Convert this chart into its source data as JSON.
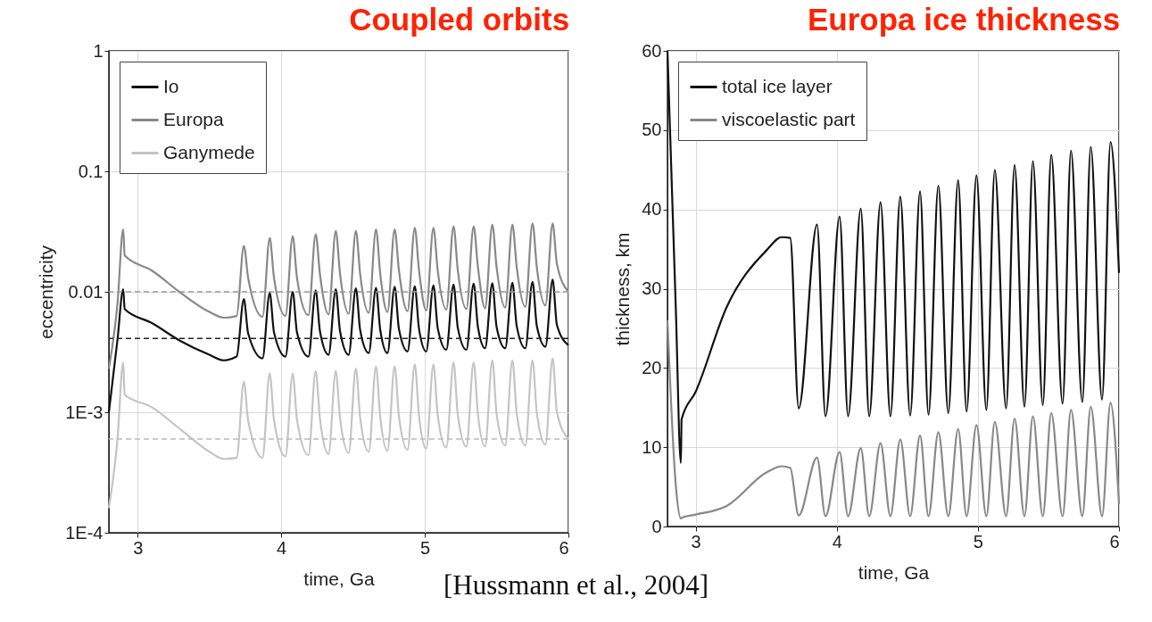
{
  "chart_data": [
    {
      "type": "line",
      "title": "Coupled orbits",
      "xlabel": "time, Ga",
      "ylabel": "eccentricity",
      "log": "y",
      "grid": true,
      "legend": "top left",
      "xlim": [
        2.8,
        6
      ],
      "xticks": [
        3,
        4,
        5,
        6
      ],
      "ylim": [
        0.0001,
        1
      ],
      "yticks": [
        1,
        0.1,
        0.01,
        {
          "value": 0.001,
          "label": "1E-3"
        },
        {
          "value": 0.0001,
          "label": "1E-4"
        }
      ],
      "x": [
        2.8,
        2.86,
        2.9,
        2.91,
        3.1,
        3.3,
        3.5,
        3.6,
        3.69,
        3.74,
        3.77,
        3.87,
        3.92,
        3.95,
        4.03,
        4.08,
        4.11,
        4.19,
        4.24,
        4.27,
        4.33,
        4.38,
        4.41,
        4.47,
        4.52,
        4.55,
        4.61,
        4.66,
        4.69,
        4.74,
        4.79,
        4.82,
        4.88,
        4.93,
        4.96,
        5.01,
        5.06,
        5.09,
        5.15,
        5.2,
        5.23,
        5.29,
        5.34,
        5.37,
        5.42,
        5.47,
        5.5,
        5.56,
        5.61,
        5.64,
        5.7,
        5.75,
        5.78,
        5.84,
        5.89,
        5.92,
        6.0
      ],
      "series": [
        {
          "name": "Io",
          "color": "#111111",
          "values": [
            0.001,
            0.004,
            0.0105,
            0.0072,
            0.0055,
            0.0039,
            0.003,
            0.0027,
            0.0029,
            0.0087,
            0.0045,
            0.0028,
            0.0098,
            0.0046,
            0.0029,
            0.01,
            0.0046,
            0.0029,
            0.0103,
            0.0047,
            0.003,
            0.0105,
            0.0047,
            0.003,
            0.0107,
            0.0048,
            0.0031,
            0.0108,
            0.0048,
            0.0031,
            0.011,
            0.0049,
            0.0032,
            0.0111,
            0.0049,
            0.0032,
            0.0113,
            0.005,
            0.0033,
            0.0115,
            0.005,
            0.0033,
            0.0117,
            0.0051,
            0.0034,
            0.0118,
            0.0051,
            0.0034,
            0.0119,
            0.0052,
            0.0034,
            0.0121,
            0.0052,
            0.0035,
            0.0126,
            0.0053,
            0.0036
          ]
        },
        {
          "name": "Europa",
          "color": "#888888",
          "values": [
            0.0023,
            0.008,
            0.033,
            0.02,
            0.015,
            0.0098,
            0.0068,
            0.0061,
            0.0063,
            0.024,
            0.013,
            0.0062,
            0.028,
            0.013,
            0.0063,
            0.029,
            0.013,
            0.0064,
            0.03,
            0.014,
            0.0065,
            0.032,
            0.014,
            0.0066,
            0.032,
            0.014,
            0.0067,
            0.033,
            0.014,
            0.0068,
            0.033,
            0.015,
            0.0069,
            0.034,
            0.015,
            0.007,
            0.034,
            0.015,
            0.0071,
            0.035,
            0.015,
            0.0072,
            0.035,
            0.016,
            0.0073,
            0.036,
            0.016,
            0.0074,
            0.036,
            0.016,
            0.0075,
            0.037,
            0.016,
            0.0077,
            0.037,
            0.017,
            0.01
          ]
        },
        {
          "name": "Ganymede",
          "color": "#c4c4c4",
          "values": [
            0.00016,
            0.0006,
            0.0026,
            0.0014,
            0.0011,
            0.00072,
            0.00047,
            0.00041,
            0.00042,
            0.0018,
            0.00085,
            0.00042,
            0.0021,
            0.00086,
            0.00043,
            0.0021,
            0.00087,
            0.00044,
            0.0022,
            0.00088,
            0.00045,
            0.0022,
            0.00089,
            0.00046,
            0.0023,
            0.0009,
            0.00047,
            0.0024,
            0.00091,
            0.00048,
            0.0024,
            0.00092,
            0.00049,
            0.0025,
            0.00093,
            0.0005,
            0.0025,
            0.00094,
            0.00051,
            0.0026,
            0.00095,
            0.00052,
            0.0026,
            0.00096,
            0.00052,
            0.0027,
            0.00097,
            0.00053,
            0.0027,
            0.00098,
            0.00053,
            0.0027,
            0.00099,
            0.00054,
            0.0028,
            0.001,
            0.0006
          ]
        }
      ],
      "ref_lines": [
        {
          "axis": "y",
          "value": 0.01,
          "color": "#999999",
          "line_style": "dashed"
        },
        {
          "axis": "y",
          "value": 0.0041,
          "color": "#222222",
          "line_style": "dashed"
        },
        {
          "axis": "y",
          "value": 0.0006,
          "color": "#bbbbbb",
          "line_style": "dashed"
        }
      ],
      "annotations": [
        "[Hussmann et al., 2004]"
      ]
    },
    {
      "type": "line",
      "title": "Europa ice thickness",
      "xlabel": "time, Ga",
      "ylabel": "thickness, km",
      "grid": true,
      "legend": "top left",
      "xlim": [
        2.8,
        6
      ],
      "xticks": [
        3,
        4,
        5,
        6
      ],
      "ylim": [
        0,
        60
      ],
      "yticks": [
        0,
        10,
        20,
        30,
        40,
        50,
        60
      ],
      "x": [
        2.8,
        2.86,
        2.895,
        2.9,
        3.0,
        3.22,
        3.5,
        3.61,
        3.67,
        3.73,
        3.86,
        3.92,
        4.02,
        4.08,
        4.17,
        4.23,
        4.31,
        4.38,
        4.45,
        4.52,
        4.59,
        4.65,
        4.72,
        4.79,
        4.86,
        4.92,
        4.99,
        5.06,
        5.12,
        5.2,
        5.26,
        5.33,
        5.39,
        5.46,
        5.52,
        5.6,
        5.66,
        5.74,
        5.8,
        5.88,
        5.94,
        6.0
      ],
      "series": [
        {
          "name": "total ice layer",
          "color": "#111111",
          "values": [
            60,
            27,
            8,
            13.5,
            17,
            27.7,
            34.8,
            36.5,
            36.4,
            14.9,
            38.1,
            13.9,
            39.1,
            13.9,
            40.1,
            13.9,
            40.9,
            13.9,
            41.6,
            14.0,
            42.3,
            14.1,
            43.0,
            14.3,
            43.7,
            14.5,
            44.3,
            14.7,
            45.0,
            14.9,
            45.6,
            15.1,
            46.1,
            15.3,
            46.9,
            15.5,
            47.4,
            15.7,
            47.9,
            16.0,
            48.5,
            32
          ]
        },
        {
          "name": "viscoelastic part",
          "color": "#888888",
          "values": [
            26,
            5,
            1.0,
            1.1,
            1.5,
            2.6,
            6.8,
            7.6,
            7.4,
            1.4,
            8.7,
            1.3,
            9.4,
            1.3,
            9.9,
            1.3,
            10.5,
            1.3,
            11.0,
            1.3,
            11.5,
            1.3,
            11.9,
            1.3,
            12.3,
            1.3,
            12.8,
            1.3,
            13.2,
            1.3,
            13.6,
            1.3,
            13.9,
            1.3,
            14.3,
            1.3,
            14.7,
            1.3,
            15.1,
            1.3,
            15.6,
            2.8
          ]
        }
      ]
    }
  ]
}
